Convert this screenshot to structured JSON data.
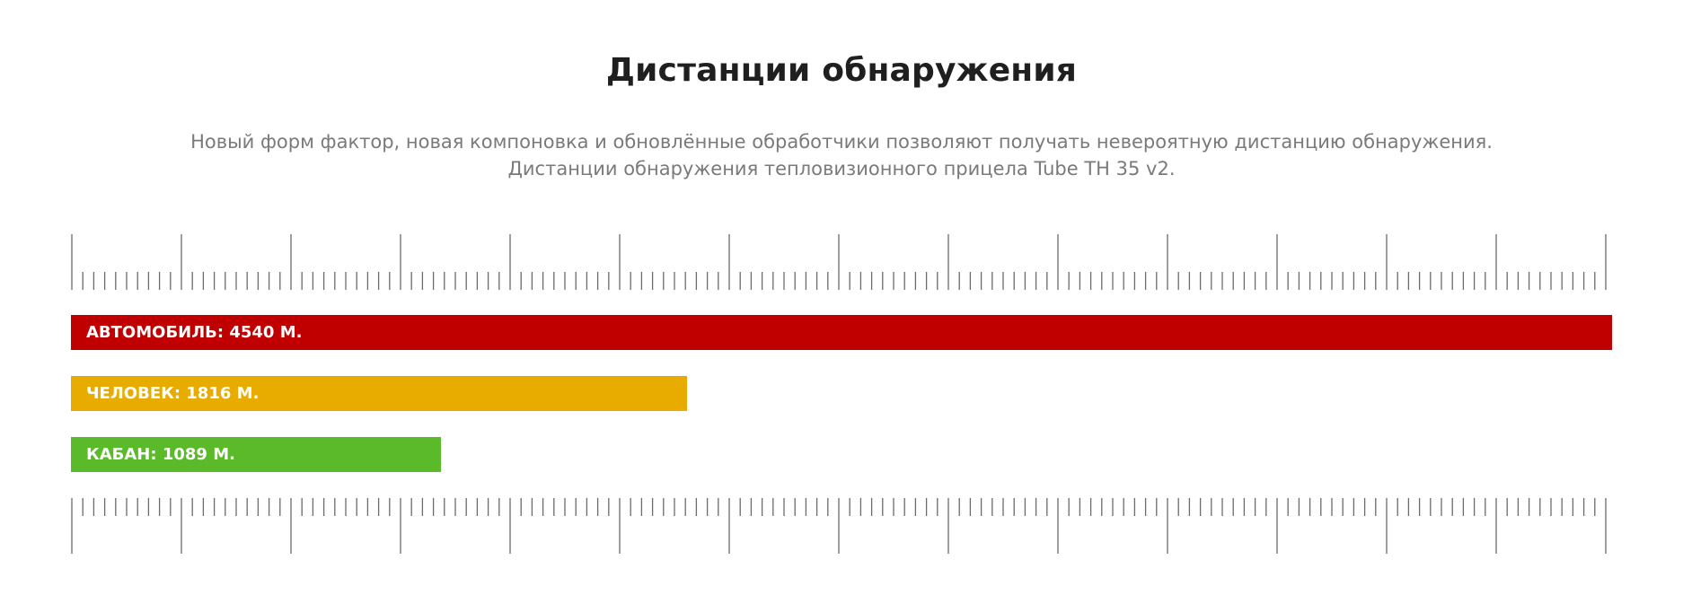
{
  "header": {
    "title": "Дистанции обнаружения",
    "subtitle_line1": "Новый форм фактор, новая компоновка и обновлённые обработчики позволяют получать невероятную дистанцию обнаружения.",
    "subtitle_line2": "Дистанции обнаружения тепловизионного прицела Tube TH 35 v2."
  },
  "chart_data": {
    "type": "bar",
    "orientation": "horizontal",
    "categories": [
      "Автомобиль",
      "Человек",
      "Кабан"
    ],
    "values": [
      4540,
      1816,
      1089
    ],
    "colors": [
      "#c00000",
      "#e8ab00",
      "#5aba2a"
    ],
    "unit": "м.",
    "xlim": [
      0,
      4540
    ]
  },
  "bars": [
    {
      "label": "Автомобиль: 4540 м."
    },
    {
      "label": "Человек: 1816 м."
    },
    {
      "label": "Кабан: 1089 м."
    }
  ]
}
